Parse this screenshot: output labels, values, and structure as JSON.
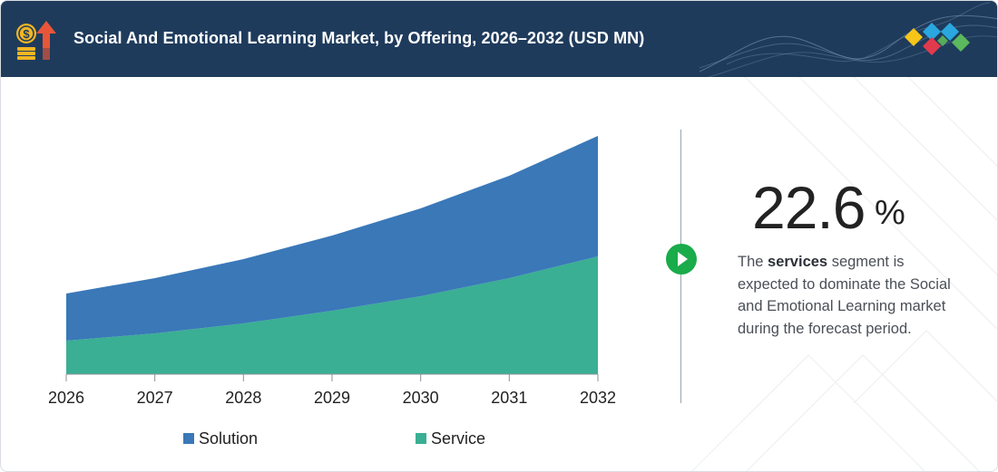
{
  "header": {
    "title": "Social And Emotional Learning Market, by Offering, 2026–2032 (USD MN)",
    "icon": "money-growth-icon",
    "logo": "brand-diamond-logo"
  },
  "colors": {
    "header_bg": "#1f3b5c",
    "solution": "#3a78b8",
    "service": "#3aaf93",
    "accent_green": "#1aab4b",
    "logo_yellow": "#f5c518",
    "logo_blue": "#2aa7df",
    "logo_red": "#e23a4d",
    "logo_green": "#5cb85c"
  },
  "chart_data": {
    "type": "area",
    "stacked": true,
    "x": [
      "2026",
      "2027",
      "2028",
      "2029",
      "2030",
      "2031",
      "2032"
    ],
    "series": [
      {
        "name": "Service",
        "values": [
          37,
          45,
          56,
          70,
          86,
          106,
          130
        ]
      },
      {
        "name": "Solution",
        "values": [
          52,
          61,
          71,
          83,
          97,
          113,
          133
        ]
      }
    ],
    "ylim": [
      0,
      280
    ],
    "grid": false,
    "legend": "bottom",
    "xlabel": "",
    "ylabel": ""
  },
  "legend": {
    "solution_label": "Solution",
    "service_label": "Service"
  },
  "highlight": {
    "value": "22.6",
    "unit": "%",
    "desc_prefix": "The ",
    "desc_bold": "services",
    "desc_suffix": " segment is expected to dominate the Social and Emotional Learning market during the forecast period.",
    "button_icon": "play-icon"
  }
}
